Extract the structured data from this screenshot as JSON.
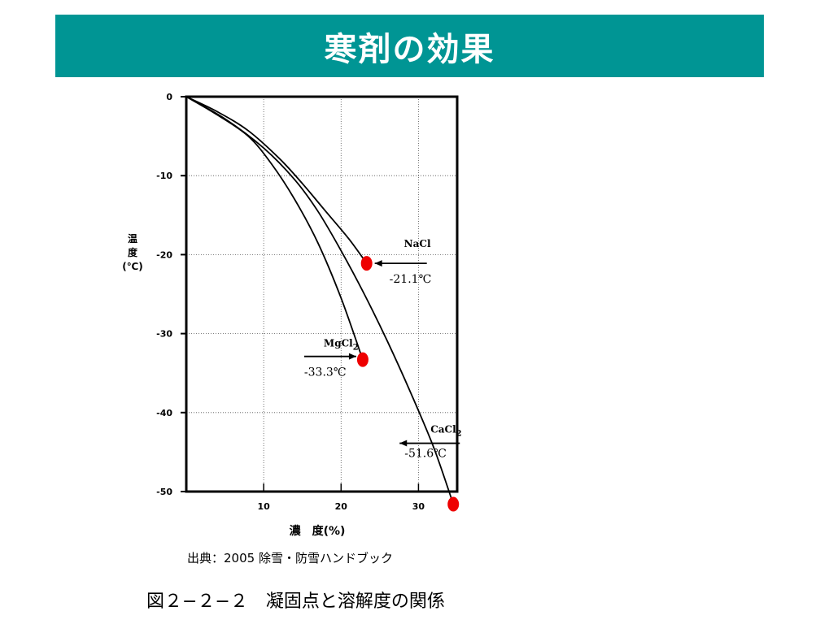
{
  "header": {
    "title": "寒剤の効果",
    "background": "#009594"
  },
  "chart_data": {
    "type": "line",
    "xlabel": "濃　度(%)",
    "ylabel": [
      "温",
      "度",
      "(℃)"
    ],
    "xlim": [
      0,
      35
    ],
    "ylim": [
      -50,
      0
    ],
    "x_ticks": [
      "10",
      "20",
      "30"
    ],
    "y_ticks": [
      "0",
      "-10",
      "-20",
      "-30",
      "-40",
      "-50"
    ],
    "grid": true,
    "grid_style": "dotted",
    "series": [
      {
        "name": "NaCl",
        "points": [
          [
            0,
            0
          ],
          [
            4,
            -1.9
          ],
          [
            8,
            -4.3
          ],
          [
            12,
            -7.8
          ],
          [
            15,
            -11
          ],
          [
            18,
            -14.5
          ],
          [
            21,
            -18
          ],
          [
            23.3,
            -21.1
          ]
        ],
        "eutectic": {
          "x": 23.3,
          "y": -21.1,
          "label": "-21.1℃"
        }
      },
      {
        "name": "CaCl",
        "name_sub": "2",
        "points": [
          [
            0,
            0
          ],
          [
            5,
            -2.8
          ],
          [
            10,
            -6.5
          ],
          [
            14,
            -10.5
          ],
          [
            17,
            -14.5
          ],
          [
            20,
            -19.5
          ],
          [
            23,
            -25
          ],
          [
            26,
            -31
          ],
          [
            29,
            -37.5
          ],
          [
            32,
            -44.5
          ],
          [
            34.5,
            -51.6
          ]
        ],
        "eutectic": {
          "x": 34.5,
          "y": -51.6,
          "label": "-51.6℃"
        }
      },
      {
        "name": "MgCl",
        "name_sub": "2",
        "points": [
          [
            0,
            0
          ],
          [
            4,
            -2.3
          ],
          [
            8,
            -5
          ],
          [
            11,
            -8.5
          ],
          [
            14,
            -13
          ],
          [
            17,
            -18.5
          ],
          [
            20,
            -25.5
          ],
          [
            22.8,
            -33.3
          ]
        ],
        "eutectic": {
          "x": 22.8,
          "y": -33.3,
          "label": "-33.3℃"
        }
      }
    ],
    "marker_color": "#ee0000",
    "line_color": "#000000"
  },
  "footer": {
    "source": "出典：2005 除雪・防雪ハンドブック",
    "caption": "図２−２−２　凝固点と溶解度の関係"
  }
}
